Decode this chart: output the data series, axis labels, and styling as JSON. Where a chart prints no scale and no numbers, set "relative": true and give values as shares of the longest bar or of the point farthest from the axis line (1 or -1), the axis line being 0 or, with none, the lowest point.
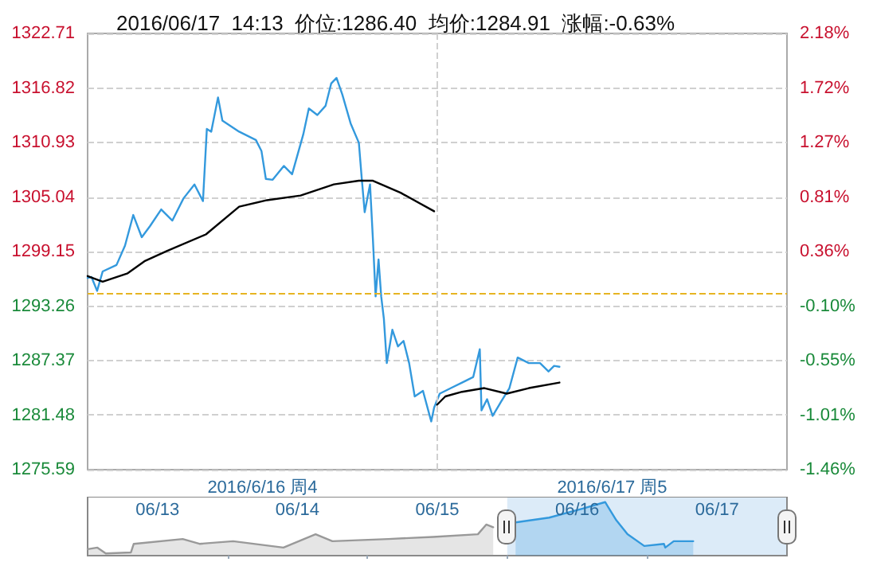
{
  "chart_data": [
    {
      "type": "line",
      "title": "2016/06/17  14:13  价位:1286.40  均价:1284.91  涨幅:-0.63%",
      "series": [
        {
          "color": "#3399dd",
          "x": [
            "2016-06-16T00:00",
            "2016-06-16T00:16",
            "2016-06-16T00:39",
            "2016-06-16T01:02",
            "2016-06-16T01:59",
            "2016-06-16T02:34",
            "2016-06-16T03:08",
            "2016-06-16T03:43",
            "2016-06-16T04:17",
            "2016-06-16T05:03",
            "2016-06-16T05:49",
            "2016-06-16T06:35",
            "2016-06-16T07:20",
            "2016-06-16T07:55",
            "2016-06-16T08:11",
            "2016-06-16T08:29",
            "2016-06-16T08:57",
            "2016-06-16T09:15",
            "2016-06-16T10:24",
            "2016-06-16T11:33",
            "2016-06-16T11:56",
            "2016-06-16T12:14",
            "2016-06-16T12:42",
            "2016-06-16T13:28",
            "2016-06-16T14:02",
            "2016-06-16T14:48",
            "2016-06-16T15:11",
            "2016-06-16T15:46",
            "2016-06-16T16:20",
            "2016-06-16T16:43",
            "2016-06-16T17:05",
            "2016-06-16T17:29",
            "2016-06-16T18:03",
            "2016-06-16T18:37",
            "2016-06-16T18:49",
            "2016-06-16T19:01",
            "2016-06-16T19:23",
            "2016-06-16T19:35",
            "2016-06-16T19:46",
            "2016-06-16T19:58",
            "2016-06-16T20:09",
            "2016-06-16T20:20",
            "2016-06-16T20:32",
            "2016-06-16T20:55",
            "2016-06-16T21:18",
            "2016-06-16T21:41",
            "2016-06-16T22:04",
            "2016-06-16T22:27",
            "2016-06-16T23:01",
            "2016-06-16T23:35",
            "2016-06-16T23:47",
            "2016-06-17T00:10",
            "2016-06-17T00:56",
            "2016-06-17T01:42",
            "2016-06-17T02:28",
            "2016-06-17T02:55",
            "2016-06-17T03:02",
            "2016-06-17T03:25",
            "2016-06-17T03:48",
            "2016-06-17T04:22",
            "2016-06-17T04:57",
            "2016-06-17T05:31",
            "2016-06-17T06:17",
            "2016-06-17T07:03",
            "2016-06-17T07:38",
            "2016-06-17T08:01",
            "2016-06-17T08:23"
          ],
          "values": [
            1296.3,
            1296.4,
            1294.9,
            1297,
            1297.7,
            1299.8,
            1303.1,
            1300.7,
            1301.9,
            1303.7,
            1302.5,
            1304.9,
            1306.4,
            1304.6,
            1312.4,
            1312.1,
            1315.8,
            1313.3,
            1312.1,
            1311.2,
            1310,
            1307,
            1306.9,
            1308.4,
            1307.5,
            1311.8,
            1314.6,
            1313.9,
            1314.9,
            1317.3,
            1317.9,
            1316.1,
            1313,
            1310.9,
            1307,
            1303.4,
            1306.4,
            1300.4,
            1294.3,
            1298.3,
            1294.3,
            1291.9,
            1287.1,
            1290.7,
            1288.9,
            1289.5,
            1287.1,
            1283.5,
            1284.1,
            1280.8,
            1282.3,
            1283.8,
            1284.4,
            1285,
            1285.6,
            1288.6,
            1282,
            1283.2,
            1281.4,
            1282.9,
            1284.4,
            1287.7,
            1287.1,
            1287.1,
            1286.2,
            1286.8,
            1286.7
          ]
        },
        {
          "color": "#000000",
          "x": [
            "2016-06-16T00:00",
            "2016-06-16T01:02",
            "2016-06-16T02:45",
            "2016-06-16T03:54",
            "2016-06-16T05:26",
            "2016-06-16T08:07",
            "2016-06-16T10:24",
            "2016-06-16T12:19",
            "2016-06-16T14:37",
            "2016-06-16T16:54",
            "2016-06-16T18:37",
            "2016-06-16T19:35",
            "2016-06-16T21:29",
            "2016-06-16T23:47",
            "2016-06-16T23:54",
            "2016-06-16T23:59",
            "2016-06-17T00:33",
            "2016-06-17T01:42",
            "2016-06-17T03:14",
            "2016-06-17T04:46",
            "2016-06-17T06:17",
            "2016-06-17T08:23"
          ],
          "values": [
            1296.5,
            1295.9,
            1296.8,
            1298.1,
            1299.2,
            1301,
            1304,
            1304.7,
            1305.2,
            1306.4,
            1306.8,
            1306.8,
            1305.5,
            1303.5,
            null,
            1282.6,
            1283.5,
            1284,
            1284.4,
            1283.8,
            1284.4,
            1285
          ]
        }
      ],
      "xlim": [
        "2016-06-16T00:00",
        "2016-06-18T00:00"
      ],
      "xticks": [
        {
          "value": "2016-06-16T12:00",
          "label": "2016/6/16 周4"
        },
        {
          "value": "2016-06-17T00:00",
          "label": null
        },
        {
          "value": "2016-06-17T12:00",
          "label": "2016/6/17 周5"
        }
      ],
      "ylim": [
        1275.59,
        1322.71
      ],
      "yticks": [
        1275.59,
        1281.48,
        1287.37,
        1293.26,
        1299.15,
        1305.04,
        1310.93,
        1316.82,
        1322.71
      ],
      "y2lim": [
        -1.46,
        2.18
      ],
      "y2ticks": [
        {
          "value": -1.46,
          "label": "-1.46%"
        },
        {
          "value": -1.01,
          "label": "-1.01%"
        },
        {
          "value": -0.55,
          "label": "-0.55%"
        },
        {
          "value": -0.1,
          "label": "-0.10%"
        },
        {
          "value": 0.36,
          "label": "0.36%"
        },
        {
          "value": 0.81,
          "label": "0.81%"
        },
        {
          "value": 1.27,
          "label": "1.27%"
        },
        {
          "value": 1.72,
          "label": "1.72%"
        },
        {
          "value": 2.18,
          "label": "2.18%"
        }
      ],
      "ref_lines": [
        {
          "axis": "y",
          "value": 1294.55,
          "color": "#e6b422",
          "line_style": "dashed"
        }
      ],
      "grid": true,
      "marker": "none",
      "line_style": "solid"
    },
    {
      "type": "area",
      "relative": true,
      "series": [
        {
          "color": "#999999",
          "x": [
            "2016-06-13T00:00",
            "2016-06-13T01:41",
            "2016-06-13T03:07",
            "2016-06-13T07:26",
            "2016-06-13T07:55",
            "2016-06-13T16:19",
            "2016-06-13T19:12",
            "2016-06-14T00:58",
            "2016-06-14T09:36",
            "2016-06-14T15:07",
            "2016-06-14T18:00",
            "2016-06-15T03:36",
            "2016-06-15T11:17",
            "2016-06-15T18:58",
            "2016-06-15T20:24",
            "2016-06-15T21:36"
          ],
          "values": [
            0.12,
            0.15,
            0.04,
            0.06,
            0.22,
            0.31,
            0.22,
            0.27,
            0.15,
            0.4,
            0.27,
            0.31,
            0.35,
            0.4,
            0.58,
            0.53
          ]
        },
        {
          "color": "#3399dd",
          "x": [
            "2016-06-16T01:26",
            "2016-06-16T07:12",
            "2016-06-16T12:58",
            "2016-06-16T16:48",
            "2016-06-16T18:43",
            "2016-06-16T20:38",
            "2016-06-16T23:31",
            "2016-06-17T02:53",
            "2016-06-17T03:07",
            "2016-06-17T04:34",
            "2016-06-17T07:55"
          ],
          "values": [
            0.62,
            0.71,
            0.88,
            1,
            0.66,
            0.4,
            0.18,
            0.22,
            0.15,
            0.27,
            0.27
          ]
        }
      ],
      "xlim": [
        "2016-06-13T00:00",
        "2016-06-18T00:00"
      ],
      "xticks": [
        {
          "value": "2016-06-13T12:00",
          "label": "06/13"
        },
        {
          "value": "2016-06-14T00:00",
          "label": null
        },
        {
          "value": "2016-06-14T12:00",
          "label": "06/14"
        },
        {
          "value": "2016-06-15T00:00",
          "label": null
        },
        {
          "value": "2016-06-15T12:00",
          "label": "06/15"
        },
        {
          "value": "2016-06-16T00:00",
          "label": null
        },
        {
          "value": "2016-06-16T12:00",
          "label": "06/16"
        },
        {
          "value": "2016-06-17T00:00",
          "label": null
        },
        {
          "value": "2016-06-17T12:00",
          "label": "06/17"
        }
      ],
      "bands": [
        {
          "axis": "x",
          "from": "2016-06-16T00:00",
          "to": "2016-06-18T00:00",
          "color": "#dcebf8"
        }
      ],
      "tick_labels": "x",
      "grid": false,
      "marker": "none",
      "line_style": "solid"
    }
  ]
}
